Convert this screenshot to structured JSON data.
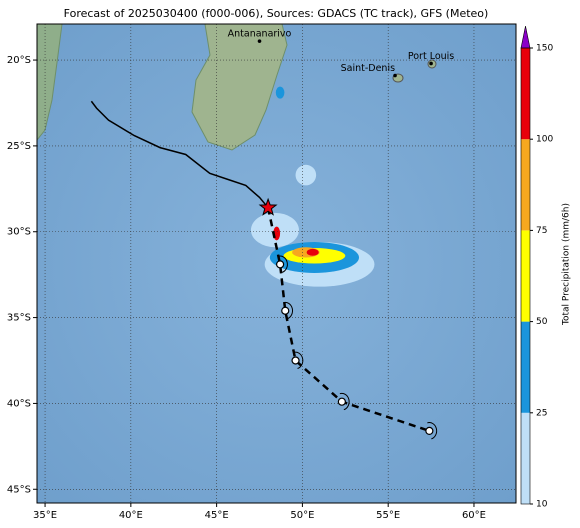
{
  "title": "Forecast of 2025030400 (f000-006), Sources: GDACS (TC track), GFS (Meteo)",
  "map": {
    "xlim": [
      34.53,
      62.45
    ],
    "ylim": [
      -45.8,
      -17.9
    ],
    "xticks": [
      {
        "value": 35,
        "label": "35°E"
      },
      {
        "value": 40,
        "label": "40°E"
      },
      {
        "value": 45,
        "label": "45°E"
      },
      {
        "value": 50,
        "label": "50°E"
      },
      {
        "value": 55,
        "label": "55°E"
      },
      {
        "value": 60,
        "label": "60°E"
      }
    ],
    "yticks": [
      {
        "value": -20,
        "label": "20°S"
      },
      {
        "value": -25,
        "label": "25°S"
      },
      {
        "value": -30,
        "label": "30°S"
      },
      {
        "value": -35,
        "label": "35°S"
      },
      {
        "value": -40,
        "label": "40°S"
      },
      {
        "value": -45,
        "label": "45°S"
      }
    ],
    "grid": true
  },
  "cities": [
    {
      "name": "Antananarivo",
      "lon": 47.5,
      "lat": -18.9
    },
    {
      "name": "Saint-Denis",
      "lon": 55.4,
      "lat": -20.9
    },
    {
      "name": "Port Louis",
      "lon": 57.5,
      "lat": -20.2
    }
  ],
  "precipitation": [
    {
      "lon": 51.0,
      "lat": -31.9,
      "rx": 3.2,
      "ry": 1.3,
      "value": 15
    },
    {
      "lon": 48.4,
      "lat": -29.9,
      "rx": 1.4,
      "ry": 1.0,
      "value": 15
    },
    {
      "lon": 50.2,
      "lat": -26.7,
      "rx": 0.6,
      "ry": 0.6,
      "value": 15
    },
    {
      "lon": 50.7,
      "lat": -31.5,
      "rx": 2.6,
      "ry": 0.9,
      "value": 35
    },
    {
      "lon": 48.7,
      "lat": -21.9,
      "rx": 0.25,
      "ry": 0.35,
      "value": 35
    },
    {
      "lon": 50.7,
      "lat": -31.4,
      "rx": 1.8,
      "ry": 0.45,
      "value": 60
    },
    {
      "lon": 50.2,
      "lat": -31.2,
      "rx": 0.8,
      "ry": 0.3,
      "value": 85
    },
    {
      "lon": 50.6,
      "lat": -31.2,
      "rx": 0.35,
      "ry": 0.2,
      "value": 120
    },
    {
      "lon": 48.5,
      "lat": -30.1,
      "rx": 0.2,
      "ry": 0.4,
      "value": 120
    }
  ],
  "track": {
    "past": {
      "lon": [
        37.7,
        38.0,
        38.7,
        40.2,
        41.7,
        43.2,
        44.6,
        45.8,
        46.7,
        47.5,
        48.0
      ],
      "lat": [
        -22.4,
        -22.8,
        -23.5,
        -24.4,
        -25.1,
        -25.5,
        -26.6,
        -27.0,
        -27.3,
        -28.0,
        -28.6
      ]
    },
    "current": {
      "lon": 48.0,
      "lat": -28.6
    },
    "forecast": {
      "lon": [
        48.0,
        48.7,
        49.0,
        49.6,
        52.3,
        57.4
      ],
      "lat": [
        -28.6,
        -31.9,
        -34.6,
        -37.5,
        -39.9,
        -41.6
      ]
    }
  },
  "colorbar": {
    "label": "Total Precipitation (mm/6h)",
    "levels": [
      10,
      25,
      50,
      75,
      100,
      150
    ],
    "colors": [
      "#bfdff7",
      "#1b95dc",
      "#ffff00",
      "#f7a81f",
      "#e8000b"
    ],
    "extend_color": "#8a00c8"
  }
}
